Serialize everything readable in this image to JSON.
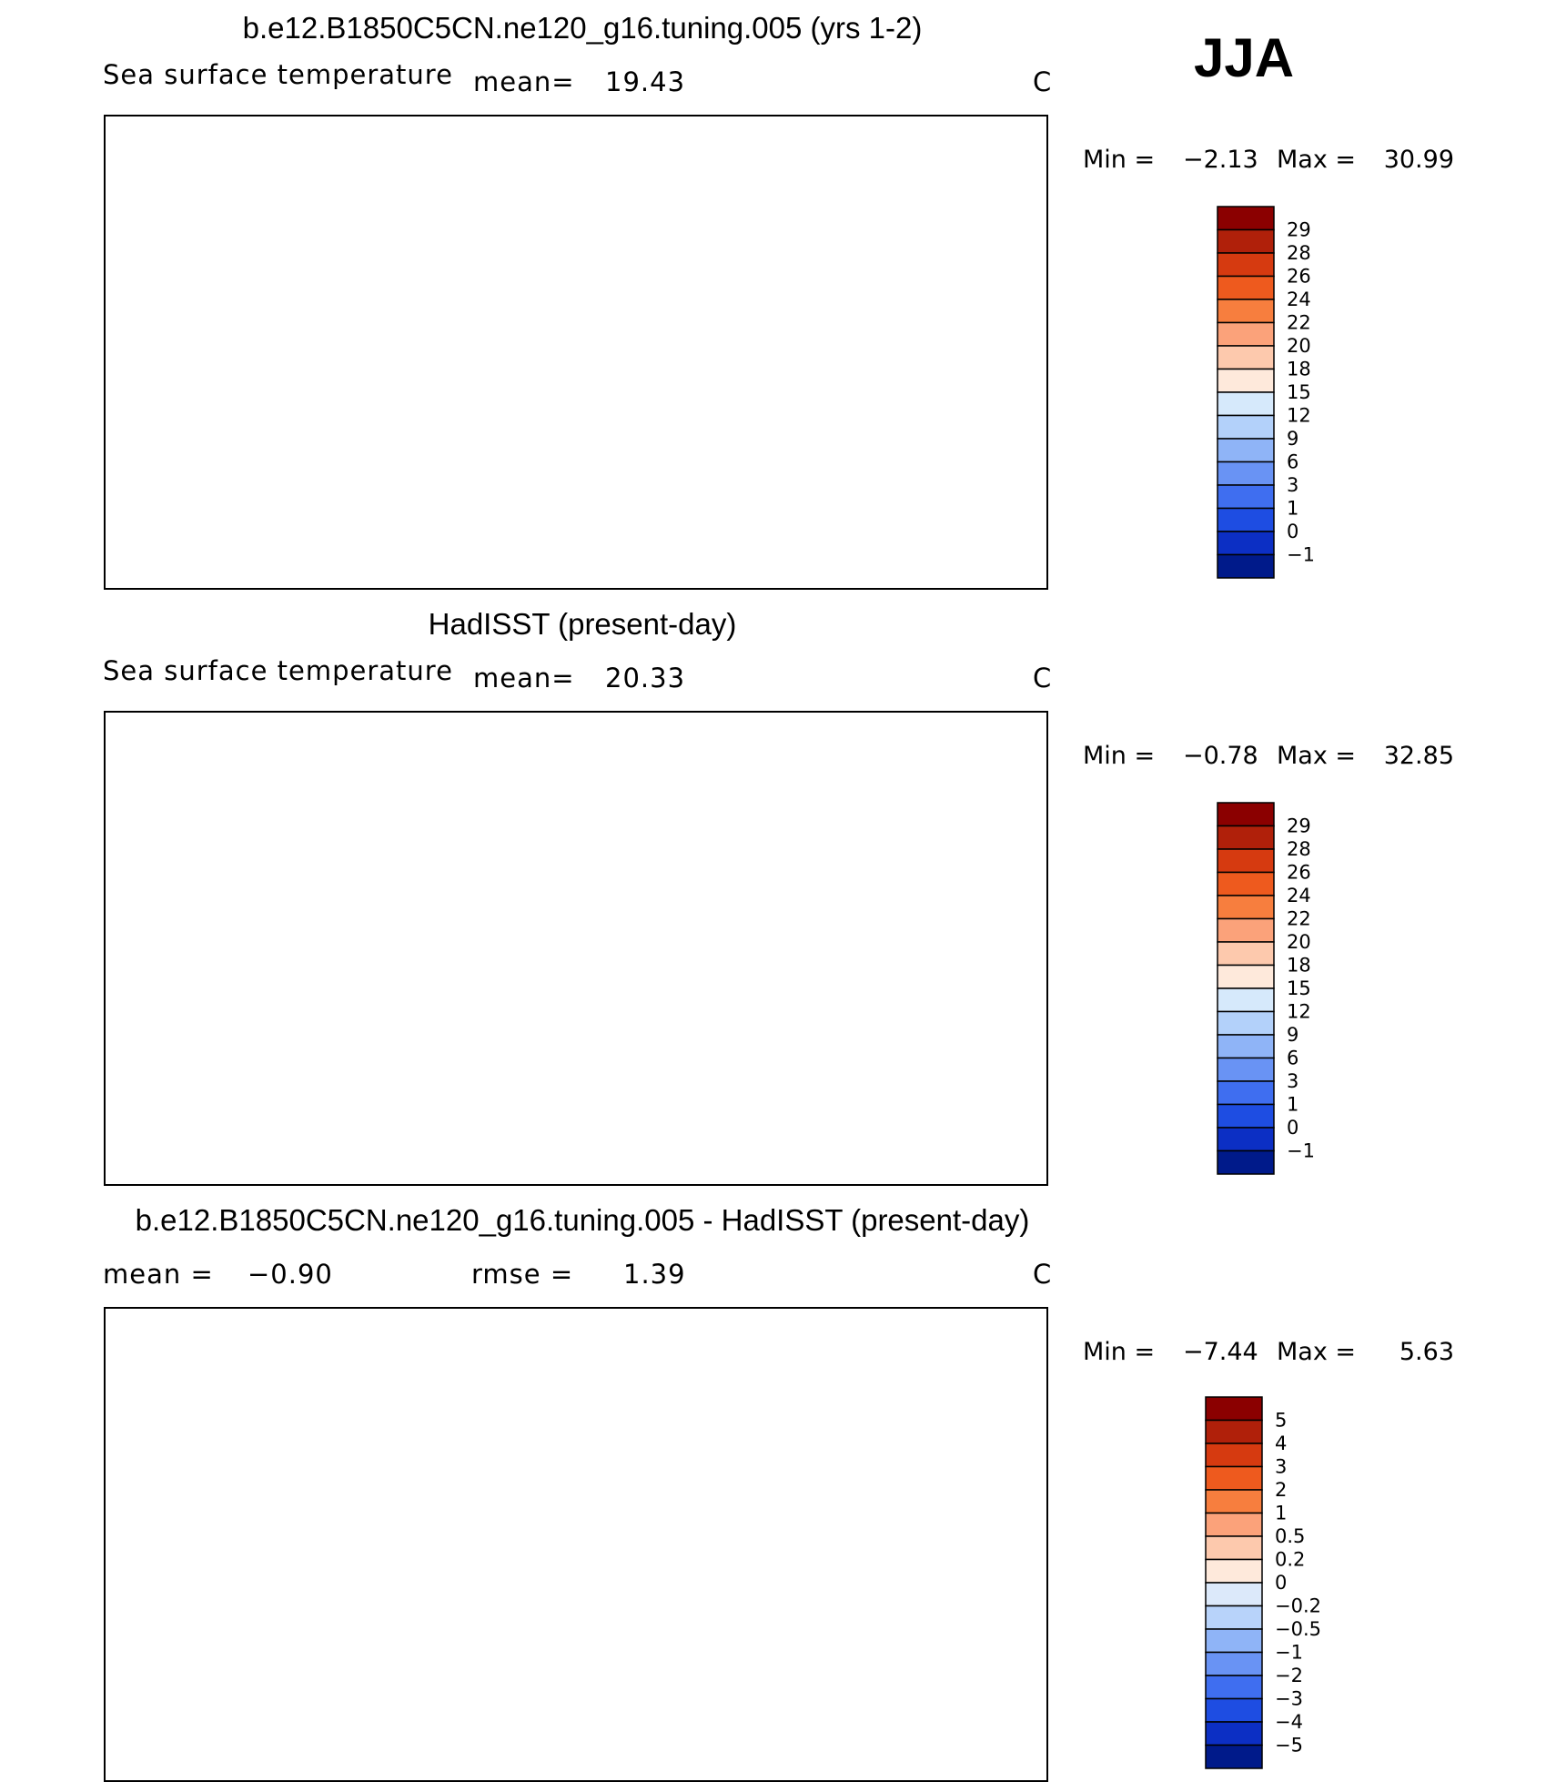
{
  "season": "JJA",
  "units_label": "C",
  "panels": [
    {
      "title": "b.e12.B1850C5CN.ne120_g16.tuning.005 (yrs 1-2)",
      "variable": "Sea surface temperature",
      "stat1_label": "mean=",
      "stat1_value": "19.43",
      "stat2_label": "",
      "stat2_value": "",
      "units": "C",
      "min_label": "Min =",
      "min_value": "−2.13",
      "max_label": "Max =",
      "max_value": "30.99",
      "colorbar_ticks": [
        "29",
        "28",
        "26",
        "24",
        "22",
        "20",
        "18",
        "15",
        "12",
        "9",
        "6",
        "3",
        "1",
        "0",
        "−1"
      ],
      "colorbar_colors": [
        "#8b0000",
        "#b0200a",
        "#d63a10",
        "#ee5a1e",
        "#f77e3e",
        "#fba27a",
        "#fdc9ad",
        "#fee9db",
        "#d6e9fb",
        "#b3d1fa",
        "#8fb4f7",
        "#6993f4",
        "#3f6ef0",
        "#1e4de2",
        "#0c2fc4",
        "#001a8a"
      ]
    },
    {
      "title": "HadISST (present-day)",
      "variable": "Sea surface temperature",
      "stat1_label": "mean=",
      "stat1_value": "20.33",
      "stat2_label": "",
      "stat2_value": "",
      "units": "C",
      "min_label": "Min =",
      "min_value": "−0.78",
      "max_label": "Max =",
      "max_value": "32.85",
      "colorbar_ticks": [
        "29",
        "28",
        "26",
        "24",
        "22",
        "20",
        "18",
        "15",
        "12",
        "9",
        "6",
        "3",
        "1",
        "0",
        "−1"
      ],
      "colorbar_colors": [
        "#8b0000",
        "#b0200a",
        "#d63a10",
        "#ee5a1e",
        "#f77e3e",
        "#fba27a",
        "#fdc9ad",
        "#fee9db",
        "#d6e9fb",
        "#b3d1fa",
        "#8fb4f7",
        "#6993f4",
        "#3f6ef0",
        "#1e4de2",
        "#0c2fc4",
        "#001a8a"
      ]
    },
    {
      "title": "b.e12.B1850C5CN.ne120_g16.tuning.005 - HadISST (present-day)",
      "variable": "",
      "stat1_label": "mean =",
      "stat1_value": "−0.90",
      "stat2_label": "rmse =",
      "stat2_value": "1.39",
      "units": "C",
      "min_label": "Min =",
      "min_value": "−7.44",
      "max_label": "Max =",
      "max_value": "5.63",
      "colorbar_ticks": [
        "5",
        "4",
        "3",
        "2",
        "1",
        "0.5",
        "0.2",
        "0",
        "−0.2",
        "−0.5",
        "−1",
        "−2",
        "−3",
        "−4",
        "−5"
      ],
      "colorbar_colors": [
        "#8b0000",
        "#b0200a",
        "#d63a10",
        "#ee5a1e",
        "#f77e3e",
        "#fba27a",
        "#fdc9ad",
        "#fee9db",
        "#dce9fa",
        "#b8d3fa",
        "#8fb4f7",
        "#6993f4",
        "#3f6ef0",
        "#1e4de2",
        "#0c2fc4",
        "#001a8a"
      ]
    }
  ],
  "chart_data": [
    {
      "type": "heatmap",
      "title": "b.e12.B1850C5CN.ne120_g16.tuning.005 (yrs 1-2)",
      "subtitle": "Sea surface temperature",
      "mean": 19.43,
      "min": -2.13,
      "max": 30.99,
      "units": "C",
      "season": "JJA",
      "contour_levels": [
        -1,
        0,
        1,
        3,
        6,
        9,
        12,
        15,
        18,
        20,
        22,
        24,
        26,
        28,
        29
      ],
      "legend": "right colorbar"
    },
    {
      "type": "heatmap",
      "title": "HadISST (present-day)",
      "subtitle": "Sea surface temperature",
      "mean": 20.33,
      "min": -0.78,
      "max": 32.85,
      "units": "C",
      "season": "JJA",
      "contour_levels": [
        -1,
        0,
        1,
        3,
        6,
        9,
        12,
        15,
        18,
        20,
        22,
        24,
        26,
        28,
        29
      ],
      "legend": "right colorbar"
    },
    {
      "type": "heatmap",
      "title": "b.e12.B1850C5CN.ne120_g16.tuning.005 - HadISST (present-day)",
      "mean": -0.9,
      "rmse": 1.39,
      "min": -7.44,
      "max": 5.63,
      "units": "C",
      "season": "JJA",
      "contour_levels": [
        -5,
        -4,
        -3,
        -2,
        -1,
        -0.5,
        -0.2,
        0,
        0.2,
        0.5,
        1,
        2,
        3,
        4,
        5
      ],
      "legend": "right colorbar"
    }
  ]
}
